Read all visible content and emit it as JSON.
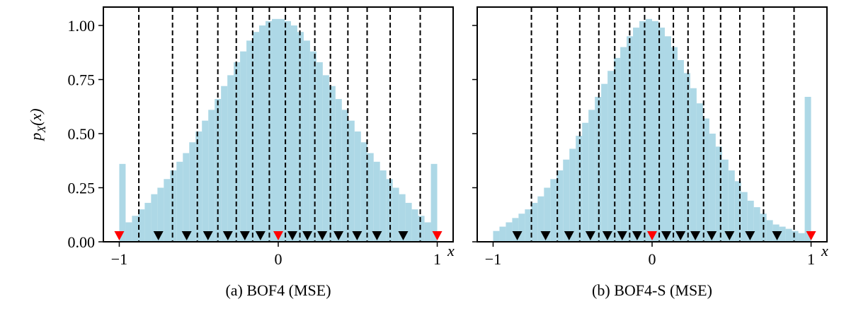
{
  "chart_data": [
    {
      "type": "histogram",
      "subtitle": "(a) BOF4 (MSE)",
      "x_label": "x",
      "y_label": {
        "base": "p",
        "sub": "X",
        "rest": "(x)"
      },
      "bins": [
        -1,
        -0.96,
        -0.92,
        -0.88,
        -0.84,
        -0.8,
        -0.76,
        -0.72,
        -0.68,
        -0.64,
        -0.6,
        -0.56,
        -0.52,
        -0.48,
        -0.44,
        -0.4,
        -0.36,
        -0.32,
        -0.28,
        -0.24,
        -0.2,
        -0.16,
        -0.12,
        -0.08,
        -0.04,
        0,
        0.04,
        0.08,
        0.12,
        0.16,
        0.2,
        0.24,
        0.28,
        0.32,
        0.36,
        0.4,
        0.44,
        0.48,
        0.52,
        0.56,
        0.6,
        0.64,
        0.68,
        0.72,
        0.76,
        0.8,
        0.84,
        0.88,
        0.92,
        0.96,
        1
      ],
      "values": [
        0.36,
        0.09,
        0.12,
        0.15,
        0.18,
        0.22,
        0.25,
        0.29,
        0.33,
        0.37,
        0.41,
        0.46,
        0.51,
        0.56,
        0.61,
        0.66,
        0.72,
        0.77,
        0.83,
        0.88,
        0.93,
        0.97,
        1.0,
        1.02,
        1.03,
        1.03,
        1.02,
        1.0,
        0.97,
        0.93,
        0.88,
        0.83,
        0.77,
        0.72,
        0.66,
        0.61,
        0.56,
        0.51,
        0.46,
        0.41,
        0.37,
        0.33,
        0.29,
        0.25,
        0.22,
        0.18,
        0.15,
        0.12,
        0.09,
        0.36
      ],
      "color": "#add8e6",
      "levels": [
        -1,
        -0.754,
        -0.576,
        -0.442,
        -0.317,
        -0.21,
        -0.112,
        0,
        0.089,
        0.183,
        0.277,
        0.379,
        0.496,
        0.621,
        0.786,
        1
      ],
      "level_colors": [
        "#ff0000",
        "#000000",
        "#000000",
        "#000000",
        "#000000",
        "#000000",
        "#000000",
        "#ff0000",
        "#000000",
        "#000000",
        "#000000",
        "#000000",
        "#000000",
        "#000000",
        "#000000",
        "#ff0000"
      ],
      "boundaries": [
        -0.877,
        -0.665,
        -0.509,
        -0.38,
        -0.264,
        -0.161,
        -0.056,
        0.045,
        0.136,
        0.23,
        0.328,
        0.438,
        0.559,
        0.704,
        0.893
      ],
      "xlim": [
        -1.1,
        1.1
      ],
      "ylim": [
        0,
        1.085
      ],
      "xticks": [
        {
          "value": -1,
          "label": "−1"
        },
        0,
        1
      ],
      "yticks": [
        {
          "value": 0,
          "label": "0.00"
        },
        {
          "value": 0.25,
          "label": "0.25"
        },
        {
          "value": 0.5,
          "label": "0.50"
        },
        {
          "value": 0.75,
          "label": "0.75"
        },
        {
          "value": 1,
          "label": "1.00"
        }
      ],
      "show_ytick_labels": true
    },
    {
      "type": "histogram",
      "subtitle": "(b) BOF4-S (MSE)",
      "x_label": "x",
      "bins": [
        -1,
        -0.96,
        -0.92,
        -0.88,
        -0.84,
        -0.8,
        -0.76,
        -0.72,
        -0.68,
        -0.64,
        -0.6,
        -0.56,
        -0.52,
        -0.48,
        -0.44,
        -0.4,
        -0.36,
        -0.32,
        -0.28,
        -0.24,
        -0.2,
        -0.16,
        -0.12,
        -0.08,
        -0.04,
        0,
        0.04,
        0.08,
        0.12,
        0.16,
        0.2,
        0.24,
        0.28,
        0.32,
        0.36,
        0.4,
        0.44,
        0.48,
        0.52,
        0.56,
        0.6,
        0.64,
        0.68,
        0.72,
        0.76,
        0.8,
        0.84,
        0.88,
        0.92,
        0.96,
        1
      ],
      "values": [
        0.05,
        0.07,
        0.09,
        0.11,
        0.13,
        0.15,
        0.18,
        0.21,
        0.25,
        0.29,
        0.33,
        0.38,
        0.43,
        0.49,
        0.55,
        0.61,
        0.67,
        0.73,
        0.79,
        0.85,
        0.9,
        0.95,
        0.99,
        1.02,
        1.03,
        1.02,
        0.99,
        0.95,
        0.9,
        0.84,
        0.78,
        0.71,
        0.64,
        0.57,
        0.5,
        0.44,
        0.38,
        0.33,
        0.28,
        0.23,
        0.19,
        0.16,
        0.13,
        0.1,
        0.08,
        0.07,
        0.06,
        0.05,
        0.04,
        0.67
      ],
      "color": "#add8e6",
      "levels": [
        -0.848,
        -0.67,
        -0.522,
        -0.388,
        -0.281,
        -0.188,
        -0.094,
        0,
        0.089,
        0.179,
        0.272,
        0.375,
        0.487,
        0.616,
        0.786,
        1
      ],
      "level_colors": [
        "#000000",
        "#000000",
        "#000000",
        "#000000",
        "#000000",
        "#000000",
        "#000000",
        "#ff0000",
        "#000000",
        "#000000",
        "#000000",
        "#000000",
        "#000000",
        "#000000",
        "#000000",
        "#ff0000"
      ],
      "boundaries": [
        -0.759,
        -0.596,
        -0.455,
        -0.335,
        -0.235,
        -0.141,
        -0.047,
        0.045,
        0.134,
        0.226,
        0.324,
        0.431,
        0.552,
        0.701,
        0.893
      ],
      "xlim": [
        -1.1,
        1.1
      ],
      "ylim": [
        0,
        1.085
      ],
      "xticks": [
        {
          "value": -1,
          "label": "−1"
        },
        0,
        1
      ],
      "yticks": [
        0,
        0.25,
        0.5,
        0.75,
        1
      ],
      "show_ytick_labels": false
    }
  ]
}
